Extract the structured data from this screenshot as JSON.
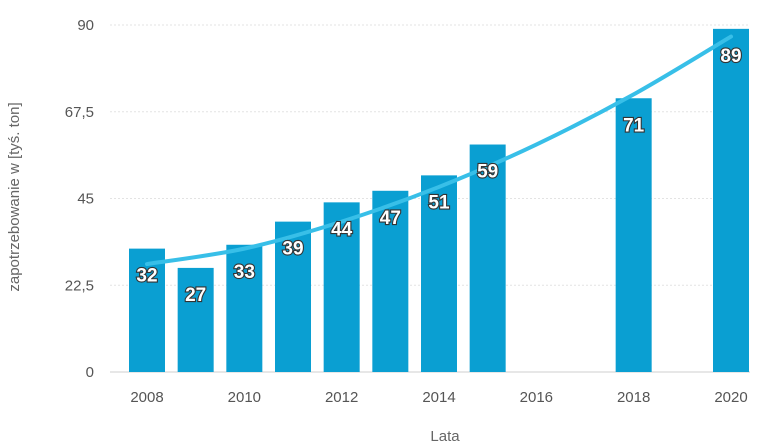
{
  "chart_data": {
    "type": "bar",
    "xlabel": "Lata",
    "ylabel": "zapotrzebowanie w [tyś. ton]",
    "ylim": [
      0,
      90
    ],
    "yticks": [
      "0",
      "22,5",
      "45",
      "67,5",
      "90"
    ],
    "ytick_values": [
      0,
      22.5,
      45,
      67.5,
      90
    ],
    "x_range": [
      2008,
      2020
    ],
    "xticks": [
      2008,
      2010,
      2012,
      2014,
      2016,
      2018,
      2020
    ],
    "series": [
      {
        "type": "bar",
        "points": [
          {
            "x": 2008,
            "y": 32,
            "label": "32"
          },
          {
            "x": 2009,
            "y": 27,
            "label": "27"
          },
          {
            "x": 2010,
            "y": 33,
            "label": "33"
          },
          {
            "x": 2011,
            "y": 39,
            "label": "39"
          },
          {
            "x": 2012,
            "y": 44,
            "label": "44"
          },
          {
            "x": 2013,
            "y": 47,
            "label": "47"
          },
          {
            "x": 2014,
            "y": 51,
            "label": "51"
          },
          {
            "x": 2015,
            "y": 59,
            "label": "59"
          },
          {
            "x": 2018,
            "y": 71,
            "label": "71"
          },
          {
            "x": 2020,
            "y": 89,
            "label": "89"
          }
        ]
      },
      {
        "type": "line",
        "trend": true,
        "points": [
          {
            "x": 2008,
            "y": 28
          },
          {
            "x": 2010,
            "y": 32
          },
          {
            "x": 2012,
            "y": 39
          },
          {
            "x": 2014,
            "y": 48
          },
          {
            "x": 2016,
            "y": 59
          },
          {
            "x": 2018,
            "y": 72
          },
          {
            "x": 2020,
            "y": 87
          }
        ]
      }
    ],
    "grid": true,
    "colors": {
      "bar": "#0a9fd2",
      "trend": "#38bfe8",
      "grid": "#e3e3e3"
    }
  }
}
